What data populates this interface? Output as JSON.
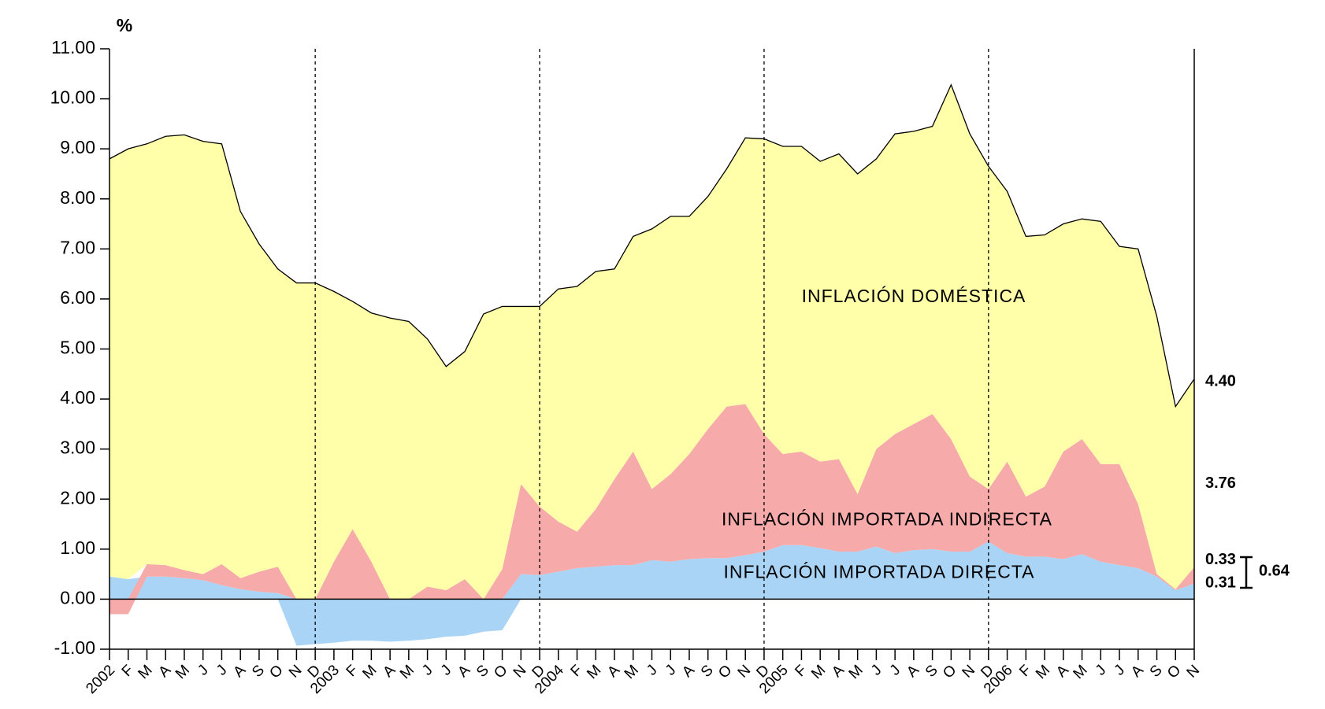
{
  "chart_data": {
    "type": "stacked_area",
    "y_label": "%",
    "categories": [
      "2002",
      "F",
      "M",
      "A",
      "M",
      "J",
      "J",
      "A",
      "S",
      "O",
      "N",
      "D",
      "2003",
      "F",
      "M",
      "A",
      "M",
      "J",
      "J",
      "A",
      "S",
      "O",
      "N",
      "D",
      "2004",
      "F",
      "M",
      "A",
      "M",
      "J",
      "J",
      "A",
      "S",
      "O",
      "N",
      "D",
      "2005",
      "F",
      "M",
      "A",
      "M",
      "J",
      "J",
      "A",
      "S",
      "O",
      "N",
      "D",
      "2006",
      "F",
      "M",
      "A",
      "M",
      "J",
      "J",
      "A",
      "S",
      "O",
      "N"
    ],
    "series": [
      {
        "name": "INFLACIÓN IMPORTADA DIRECTA",
        "color": "#aad4f5",
        "values": [
          0.45,
          0.4,
          0.45,
          0.45,
          0.42,
          0.38,
          0.28,
          0.2,
          0.15,
          0.12,
          -0.93,
          -0.9,
          -0.87,
          -0.83,
          -0.83,
          -0.85,
          -0.83,
          -0.8,
          -0.75,
          -0.73,
          -0.65,
          -0.62,
          0.5,
          0.48,
          0.55,
          0.62,
          0.65,
          0.68,
          0.68,
          0.78,
          0.75,
          0.8,
          0.82,
          0.82,
          0.88,
          0.95,
          1.08,
          1.08,
          1.02,
          0.95,
          0.95,
          1.05,
          0.92,
          0.98,
          1.0,
          0.95,
          0.95,
          1.15,
          0.92,
          0.85,
          0.85,
          0.8,
          0.9,
          0.75,
          0.68,
          0.62,
          0.45,
          0.18,
          0.31
        ]
      },
      {
        "name": "INFLACIÓN IMPORTADA INDIRECTA",
        "color": "#f7aaaa",
        "values": [
          -0.3,
          -0.3,
          0.25,
          0.23,
          0.16,
          0.12,
          0.42,
          0.22,
          0.4,
          0.53,
          0,
          0,
          0.75,
          1.4,
          0.75,
          0,
          0,
          0.25,
          0.18,
          0.4,
          0,
          0.6,
          1.8,
          1.37,
          1.0,
          0.73,
          1.15,
          1.72,
          2.27,
          1.42,
          1.75,
          2.1,
          2.58,
          3.03,
          3.02,
          2.35,
          1.82,
          1.87,
          1.73,
          1.85,
          1.15,
          1.95,
          2.38,
          2.52,
          2.7,
          2.25,
          1.5,
          1.05,
          1.83,
          1.2,
          1.4,
          2.15,
          2.3,
          1.95,
          2.02,
          1.28,
          0.05,
          0.02,
          0.33
        ]
      },
      {
        "name": "INFLACIÓN DOMÉSTICA",
        "color": "#ffffaa",
        "values": [
          8.35,
          8.6,
          8.4,
          8.57,
          8.7,
          8.65,
          8.4,
          7.33,
          6.55,
          5.95,
          6.32,
          6.32,
          5.4,
          4.55,
          4.97,
          5.62,
          5.55,
          4.95,
          4.47,
          4.55,
          5.7,
          5.25,
          3.55,
          4.0,
          4.65,
          4.9,
          4.75,
          4.2,
          4.3,
          5.2,
          5.15,
          4.75,
          4.65,
          4.75,
          5.32,
          5.9,
          6.15,
          6.1,
          6.0,
          6.1,
          6.4,
          5.8,
          6.0,
          5.85,
          5.75,
          7.08,
          6.85,
          6.45,
          5.4,
          5.2,
          5.03,
          4.55,
          4.4,
          4.85,
          4.35,
          5.1,
          5.15,
          3.65,
          3.76
        ]
      }
    ],
    "end_labels": [
      {
        "value": 4.4,
        "label": "4.40"
      },
      {
        "value": 3.76,
        "label": "3.76"
      },
      {
        "value": 0.33,
        "label": "0.33"
      },
      {
        "value": 0.31,
        "label": "0.31"
      },
      {
        "value": 0.64,
        "label": "0.64"
      }
    ],
    "ylim": [
      -1,
      11
    ],
    "yticks": [
      {
        "value": -1,
        "label": "-1.00"
      },
      {
        "value": 0,
        "label": "0.00"
      },
      {
        "value": 1,
        "label": "1.00"
      },
      {
        "value": 2,
        "label": "2.00"
      },
      {
        "value": 3,
        "label": "3.00"
      },
      {
        "value": 4,
        "label": "4.00"
      },
      {
        "value": 5,
        "label": "5.00"
      },
      {
        "value": 6,
        "label": "6.00"
      },
      {
        "value": 7,
        "label": "7.00"
      },
      {
        "value": 8,
        "label": "8.00"
      },
      {
        "value": 9,
        "label": "9.00"
      },
      {
        "value": 10,
        "label": "10.00"
      },
      {
        "value": 11,
        "label": "11.00"
      }
    ]
  }
}
